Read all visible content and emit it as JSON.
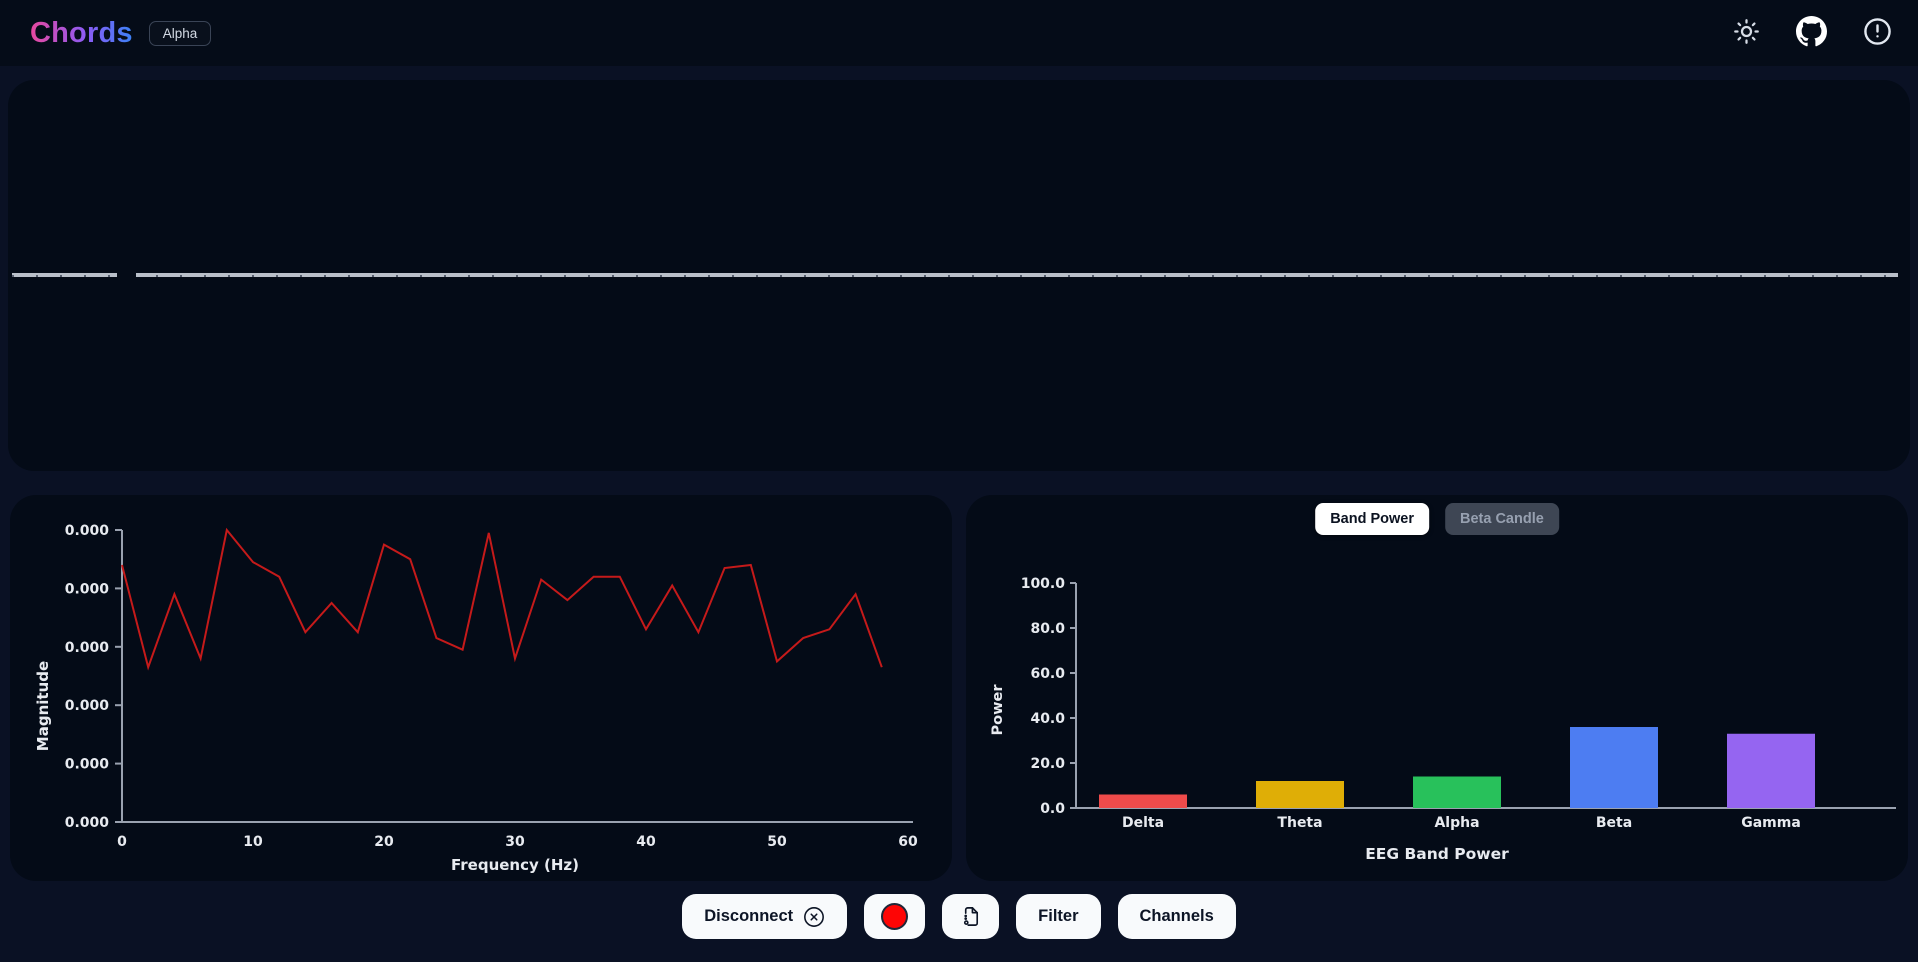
{
  "navbar": {
    "brand": "Chords",
    "badge": "Alpha",
    "icons": [
      {
        "name": "theme-toggle-sun"
      },
      {
        "name": "github"
      },
      {
        "name": "circle-alert"
      }
    ]
  },
  "colors": {
    "accent_gradient": [
      "#e8489e",
      "#8b5cf6",
      "#3b82f6"
    ],
    "page_bg": "#0a1124",
    "panel_bg": "#040b17",
    "axis": "#9aa2b0",
    "record_red": "#fe0505",
    "fft_line": "#c51a1a"
  },
  "band_toggle": {
    "options": [
      {
        "label": "Band Power",
        "active": true
      },
      {
        "label": "Beta Candle",
        "active": false
      }
    ]
  },
  "controls": {
    "disconnect_label": "Disconnect",
    "disconnect_icon": "circle-x",
    "record_icon": "record-red-circle",
    "file_icon": "recording-file",
    "filter_label": "Filter",
    "channels_label": "Channels"
  },
  "chart_data": [
    {
      "id": "raw_signal",
      "type": "line",
      "description": "Raw EEG channel trace rendered as a flat baseline line across the top panel with a sweep gap near the left edge",
      "color": "#b9bfc9",
      "y_constant": 0
    },
    {
      "id": "fft",
      "type": "line",
      "xlabel": "Frequency (Hz)",
      "ylabel": "Magnitude",
      "x_ticks": [
        "0",
        "10",
        "20",
        "30",
        "40",
        "50",
        "60"
      ],
      "y_ticks": [
        "0.000",
        "0.000",
        "0.000",
        "0.000",
        "0.000",
        "0.000"
      ],
      "xlim": [
        0,
        60
      ],
      "line_color": "#c51a1a",
      "grid": false,
      "series": [
        {
          "name": "FFT magnitude",
          "x_hz": [
            0,
            2,
            4,
            6,
            8,
            10,
            12,
            14,
            16,
            18,
            20,
            22,
            24,
            26,
            28,
            30,
            32,
            34,
            36,
            38,
            40,
            42,
            44,
            46,
            48,
            50,
            52,
            54,
            56,
            58
          ],
          "relative_magnitude": [
            0.88,
            0.53,
            0.78,
            0.56,
            1.0,
            0.89,
            0.84,
            0.65,
            0.75,
            0.65,
            0.95,
            0.9,
            0.63,
            0.59,
            0.99,
            0.56,
            0.83,
            0.76,
            0.84,
            0.84,
            0.66,
            0.81,
            0.65,
            0.87,
            0.88,
            0.55,
            0.63,
            0.66,
            0.78,
            0.53
          ]
        }
      ]
    },
    {
      "id": "band_power",
      "type": "bar",
      "title": "EEG Band Power",
      "xlabel": "EEG Band Power",
      "ylabel": "Power",
      "categories": [
        "Delta",
        "Theta",
        "Alpha",
        "Beta",
        "Gamma"
      ],
      "values": [
        6,
        12,
        14,
        36,
        33
      ],
      "bar_colors": [
        "#ef4b4b",
        "#dfae06",
        "#28c15b",
        "#4d7df2",
        "#9565f1"
      ],
      "ylim": [
        0,
        100
      ],
      "y_ticks": [
        "0.0",
        "20.0",
        "40.0",
        "60.0",
        "80.0",
        "100.0"
      ],
      "grid": false,
      "legend": "none"
    }
  ]
}
